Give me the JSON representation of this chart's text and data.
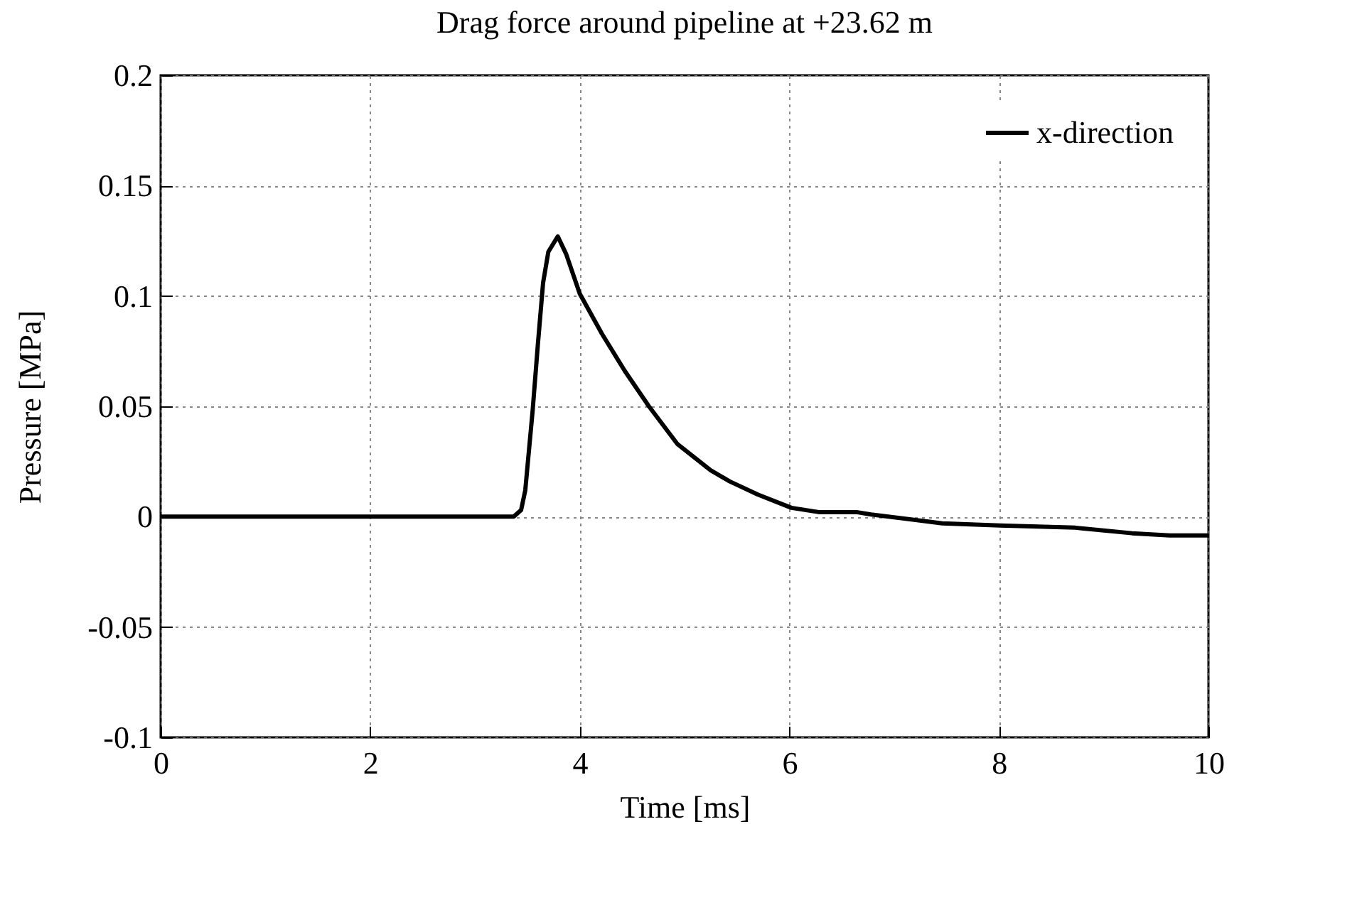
{
  "chart_data": {
    "type": "line",
    "title": "Drag force around pipeline at +23.62 m",
    "xlabel": "Time [ms]",
    "ylabel": "Pressure [MPa]",
    "xlim": [
      0,
      10
    ],
    "xticks": [
      0,
      2,
      4,
      6,
      8,
      10
    ],
    "ylim": [
      -0.1,
      0.2
    ],
    "yticks": [
      -0.1,
      -0.05,
      0,
      0.05,
      0.1,
      0.15,
      0.2
    ],
    "grid": true,
    "legend": "top right",
    "line_style": "solid",
    "series": [
      {
        "name": "x-direction",
        "color": "#000000",
        "x": [
          0,
          1,
          2,
          3,
          3.37,
          3.44,
          3.48,
          3.55,
          3.6,
          3.65,
          3.7,
          3.79,
          3.87,
          4,
          4.21,
          4.43,
          4.66,
          4.93,
          5.25,
          5.43,
          5.7,
          6.02,
          6.29,
          6.65,
          6.78,
          7.46,
          8.01,
          8.73,
          9.27,
          9.63,
          10
        ],
        "values": [
          0,
          0,
          0,
          0,
          0,
          0.003,
          0.012,
          0.048,
          0.078,
          0.106,
          0.12,
          0.127,
          0.119,
          0.101,
          0.083,
          0.066,
          0.05,
          0.033,
          0.021,
          0.016,
          0.01,
          0.004,
          0.002,
          0.002,
          0.001,
          -0.003,
          -0.004,
          -0.005,
          -0.0075,
          -0.0085,
          -0.0085
        ]
      }
    ]
  }
}
